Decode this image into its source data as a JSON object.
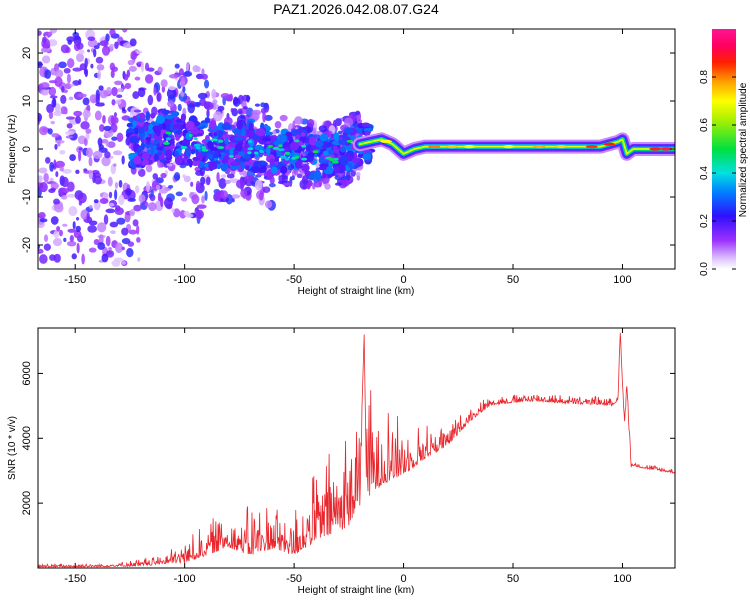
{
  "figure": {
    "title": "PAZ1.2026.042.08.07.G24"
  },
  "colors": {
    "snr_line": "#e8272d",
    "axis": "#000000",
    "spectro_stops": [
      "#ffffff",
      "#8a2be2",
      "#2020ff",
      "#00c8ff",
      "#00e040",
      "#ffff00",
      "#ff8000",
      "#ff0000",
      "#ff1493"
    ]
  },
  "chart_data": [
    {
      "type": "heatmap",
      "title": "PAZ1.2026.042.08.07.G24",
      "xlabel": "Height of straight line (km)",
      "ylabel": "Frequency (Hz)",
      "xlim": [
        -167,
        124
      ],
      "ylim": [
        -25,
        25
      ],
      "xticks": [
        -150,
        -100,
        -50,
        0,
        50,
        100
      ],
      "xtick_labels": [
        "-150",
        "-100",
        "-50",
        "0",
        "50",
        "100"
      ],
      "yticks": [
        20,
        10,
        0,
        -10,
        -20
      ],
      "ytick_labels": [
        "20",
        "10",
        "0",
        "-10",
        "-20"
      ],
      "colorbar": {
        "label": "Normalized spectral amplitude",
        "range": [
          0,
          1
        ],
        "ticks": [
          0.0,
          0.2,
          0.4,
          0.6,
          0.8
        ],
        "tick_labels": [
          "0.0",
          "0.2",
          "0.4",
          "0.6",
          "0.8"
        ]
      },
      "ridge": {
        "description_points_km_hz": [
          [
            -125,
            1
          ],
          [
            -110,
            3
          ],
          [
            -100,
            2
          ],
          [
            -90,
            1
          ],
          [
            -80,
            0
          ],
          [
            -70,
            1
          ],
          [
            -60,
            -1
          ],
          [
            -50,
            0
          ],
          [
            -40,
            -2
          ],
          [
            -30,
            -1
          ],
          [
            -20,
            1
          ],
          [
            -10,
            2
          ],
          [
            -5,
            1
          ],
          [
            0,
            -1
          ],
          [
            5,
            0
          ],
          [
            10,
            0.5
          ],
          [
            30,
            0.5
          ],
          [
            60,
            0.5
          ],
          [
            90,
            0.5
          ],
          [
            98,
            1.5
          ],
          [
            100,
            2
          ],
          [
            102,
            -1
          ],
          [
            105,
            0
          ],
          [
            110,
            0
          ],
          [
            124,
            0
          ]
        ]
      }
    },
    {
      "type": "line",
      "xlabel": "Height of straight line (km)",
      "ylabel": "SNR (10 * v/v)",
      "xlim": [
        -167,
        124
      ],
      "ylim": [
        0,
        7400
      ],
      "xticks": [
        -150,
        -100,
        -50,
        0,
        50,
        100
      ],
      "xtick_labels": [
        "-150",
        "-100",
        "-50",
        "0",
        "50",
        "100"
      ],
      "yticks": [
        2000,
        4000,
        6000
      ],
      "ytick_labels": [
        "2000",
        "4000",
        "6000"
      ],
      "envelope_km_snr": [
        [
          -167,
          50
        ],
        [
          -140,
          60
        ],
        [
          -120,
          100
        ],
        [
          -110,
          200
        ],
        [
          -100,
          300
        ],
        [
          -90,
          600
        ],
        [
          -80,
          900
        ],
        [
          -70,
          700
        ],
        [
          -60,
          900
        ],
        [
          -50,
          700
        ],
        [
          -40,
          1300
        ],
        [
          -30,
          1700
        ],
        [
          -25,
          2000
        ],
        [
          -20,
          2700
        ],
        [
          -18,
          7200
        ],
        [
          -17,
          2800
        ],
        [
          -15,
          2900
        ],
        [
          -10,
          3200
        ],
        [
          0,
          3200
        ],
        [
          10,
          3600
        ],
        [
          20,
          3900
        ],
        [
          30,
          4600
        ],
        [
          40,
          5100
        ],
        [
          50,
          5150
        ],
        [
          60,
          5200
        ],
        [
          70,
          5150
        ],
        [
          80,
          5100
        ],
        [
          90,
          5100
        ],
        [
          95,
          5050
        ],
        [
          98,
          5200
        ],
        [
          99,
          7400
        ],
        [
          100,
          5600
        ],
        [
          101,
          4600
        ],
        [
          102,
          5600
        ],
        [
          103,
          4400
        ],
        [
          104,
          3200
        ],
        [
          110,
          3100
        ],
        [
          124,
          2950
        ]
      ],
      "noise_amplitude": [
        [
          -167,
          60
        ],
        [
          -130,
          80
        ],
        [
          -110,
          200
        ],
        [
          -90,
          600
        ],
        [
          -70,
          900
        ],
        [
          -50,
          900
        ],
        [
          -35,
          1500
        ],
        [
          -20,
          2200
        ],
        [
          -10,
          1800
        ],
        [
          0,
          900
        ],
        [
          15,
          500
        ],
        [
          30,
          250
        ],
        [
          50,
          150
        ],
        [
          90,
          150
        ],
        [
          104,
          100
        ],
        [
          124,
          80
        ]
      ]
    }
  ]
}
